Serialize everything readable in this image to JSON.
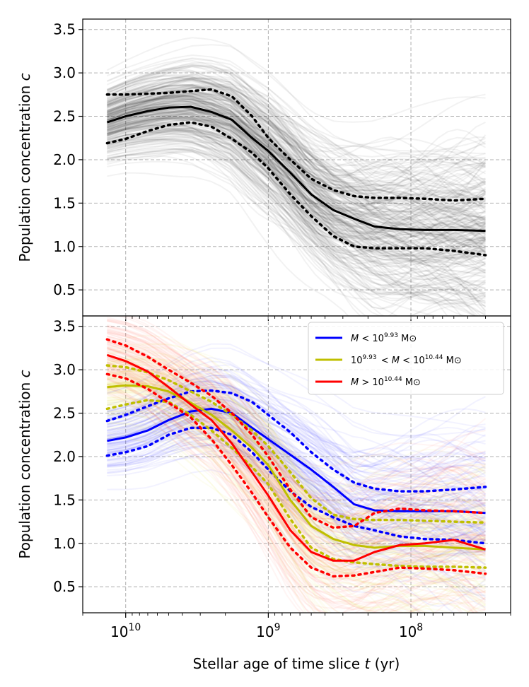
{
  "chart_data": [
    {
      "type": "line",
      "panel": "top",
      "ylabel_prefix": "Population concentration ",
      "ylabel_var": "c",
      "x_scale": "log",
      "x_reversed": true,
      "xlim": [
        20000000000,
        20000000
      ],
      "ylim": [
        0.2,
        3.62
      ],
      "grid": true,
      "yticks": [
        0.5,
        1.0,
        1.5,
        2.0,
        2.5,
        3.0,
        3.5
      ],
      "ytick_labels": [
        "0.5",
        "1.0",
        "1.5",
        "2.0",
        "2.5",
        "3.0",
        "3.5"
      ],
      "series": [
        {
          "name": "median",
          "color": "#000000",
          "style": "solid",
          "x": [
            13500000000,
            10000000000,
            7000000000,
            5000000000,
            3500000000,
            2500000000,
            1800000000,
            1300000000,
            1000000000,
            700000000,
            500000000,
            350000000,
            250000000,
            180000000,
            120000000,
            80000000,
            50000000,
            30000000
          ],
          "y": [
            2.43,
            2.5,
            2.56,
            2.6,
            2.61,
            2.55,
            2.46,
            2.25,
            2.1,
            1.85,
            1.6,
            1.42,
            1.32,
            1.23,
            1.2,
            1.19,
            1.19,
            1.18
          ]
        },
        {
          "name": "upper",
          "color": "#000000",
          "style": "dotted",
          "x": [
            13500000000,
            10000000000,
            7000000000,
            5000000000,
            3500000000,
            2500000000,
            1800000000,
            1300000000,
            1000000000,
            700000000,
            500000000,
            350000000,
            250000000,
            180000000,
            120000000,
            80000000,
            50000000,
            30000000
          ],
          "y": [
            2.75,
            2.75,
            2.76,
            2.77,
            2.79,
            2.81,
            2.73,
            2.5,
            2.25,
            2.0,
            1.78,
            1.65,
            1.58,
            1.56,
            1.56,
            1.55,
            1.53,
            1.55
          ]
        },
        {
          "name": "lower",
          "color": "#000000",
          "style": "dotted",
          "x": [
            13500000000,
            10000000000,
            7000000000,
            5000000000,
            3500000000,
            2500000000,
            1800000000,
            1300000000,
            1000000000,
            700000000,
            500000000,
            350000000,
            250000000,
            180000000,
            120000000,
            80000000,
            50000000,
            30000000
          ],
          "y": [
            2.19,
            2.24,
            2.33,
            2.4,
            2.43,
            2.38,
            2.24,
            2.08,
            1.9,
            1.6,
            1.35,
            1.12,
            1.0,
            0.98,
            0.98,
            0.98,
            0.95,
            0.9
          ]
        }
      ]
    },
    {
      "type": "line",
      "panel": "bottom",
      "ylabel_prefix": "Population concentration ",
      "ylabel_var": "c",
      "xlabel_prefix": "Stellar age of time slice ",
      "xlabel_var": "t",
      "xlabel_suffix": " (yr)",
      "x_scale": "log",
      "x_reversed": true,
      "xlim": [
        20000000000,
        20000000
      ],
      "ylim": [
        0.2,
        3.62
      ],
      "grid": true,
      "legend_location": "top-right",
      "yticks": [
        0.5,
        1.0,
        1.5,
        2.0,
        2.5,
        3.0,
        3.5
      ],
      "ytick_labels": [
        "0.5",
        "1.0",
        "1.5",
        "2.0",
        "2.5",
        "3.0",
        "3.5"
      ],
      "xticks": [
        10000000000,
        1000000000,
        100000000
      ],
      "xtick_base": "10",
      "xtick_exponents": [
        "10",
        "9",
        "8"
      ],
      "legend": [
        {
          "color": "#0000ff",
          "pre": "",
          "var": "M",
          "op": " < ",
          "base": "10",
          "exp": "9.93",
          "post": "",
          "unit": " M⊙"
        },
        {
          "color": "#bfbf00",
          "pre": "10",
          "pre_exp": "9.93",
          "var": "M",
          "op": " < ",
          "base": "10",
          "exp": "10.44",
          "post": "",
          "unit": " M⊙"
        },
        {
          "color": "#ff0000",
          "pre": "",
          "var": "M",
          "op": " > ",
          "base": "10",
          "exp": "10.44",
          "post": "",
          "unit": " M⊙"
        }
      ],
      "series": [
        {
          "name": "low-mass median",
          "color": "#0000ff",
          "style": "solid",
          "x": [
            13500000000,
            10000000000,
            7000000000,
            5000000000,
            3500000000,
            2500000000,
            1800000000,
            1300000000,
            1000000000,
            700000000,
            500000000,
            350000000,
            250000000,
            180000000,
            120000000,
            80000000,
            50000000,
            30000000
          ],
          "y": [
            2.18,
            2.22,
            2.3,
            2.42,
            2.52,
            2.55,
            2.5,
            2.33,
            2.2,
            2.02,
            1.85,
            1.65,
            1.45,
            1.38,
            1.37,
            1.37,
            1.37,
            1.35
          ]
        },
        {
          "name": "low-mass upper",
          "color": "#0000ff",
          "style": "dotted",
          "x": [
            13500000000,
            10000000000,
            7000000000,
            5000000000,
            3500000000,
            2500000000,
            1800000000,
            1300000000,
            1000000000,
            700000000,
            500000000,
            350000000,
            250000000,
            180000000,
            120000000,
            80000000,
            50000000,
            30000000
          ],
          "y": [
            2.41,
            2.48,
            2.58,
            2.67,
            2.75,
            2.76,
            2.73,
            2.63,
            2.48,
            2.28,
            2.05,
            1.85,
            1.7,
            1.63,
            1.6,
            1.6,
            1.62,
            1.65
          ]
        },
        {
          "name": "low-mass lower",
          "color": "#0000ff",
          "style": "dotted",
          "x": [
            13500000000,
            10000000000,
            7000000000,
            5000000000,
            3500000000,
            2500000000,
            1800000000,
            1300000000,
            1000000000,
            700000000,
            500000000,
            350000000,
            250000000,
            180000000,
            120000000,
            80000000,
            50000000,
            30000000
          ],
          "y": [
            2.01,
            2.05,
            2.12,
            2.25,
            2.33,
            2.33,
            2.25,
            2.05,
            1.85,
            1.6,
            1.42,
            1.3,
            1.2,
            1.15,
            1.08,
            1.05,
            1.04,
            1.0
          ]
        },
        {
          "name": "mid-mass median",
          "color": "#bfbf00",
          "style": "solid",
          "x": [
            13500000000,
            10000000000,
            7000000000,
            5000000000,
            3500000000,
            2500000000,
            1800000000,
            1300000000,
            1000000000,
            700000000,
            500000000,
            350000000,
            250000000,
            180000000,
            120000000,
            80000000,
            50000000,
            30000000
          ],
          "y": [
            2.8,
            2.82,
            2.81,
            2.75,
            2.62,
            2.48,
            2.3,
            2.1,
            1.9,
            1.5,
            1.2,
            1.05,
            0.98,
            0.95,
            0.97,
            0.97,
            0.95,
            0.93
          ]
        },
        {
          "name": "mid-mass upper",
          "color": "#bfbf00",
          "style": "dotted",
          "x": [
            13500000000,
            10000000000,
            7000000000,
            5000000000,
            3500000000,
            2500000000,
            1800000000,
            1300000000,
            1000000000,
            700000000,
            500000000,
            350000000,
            250000000,
            180000000,
            120000000,
            80000000,
            50000000,
            30000000
          ],
          "y": [
            3.05,
            3.03,
            2.97,
            2.88,
            2.75,
            2.63,
            2.48,
            2.3,
            2.12,
            1.82,
            1.52,
            1.33,
            1.28,
            1.27,
            1.27,
            1.26,
            1.25,
            1.24
          ]
        },
        {
          "name": "mid-mass lower",
          "color": "#bfbf00",
          "style": "dotted",
          "x": [
            13500000000,
            10000000000,
            7000000000,
            5000000000,
            3500000000,
            2500000000,
            1800000000,
            1300000000,
            1000000000,
            700000000,
            500000000,
            350000000,
            250000000,
            180000000,
            120000000,
            80000000,
            50000000,
            30000000
          ],
          "y": [
            2.55,
            2.6,
            2.65,
            2.63,
            2.48,
            2.3,
            2.1,
            1.88,
            1.68,
            1.28,
            0.95,
            0.82,
            0.78,
            0.76,
            0.74,
            0.73,
            0.73,
            0.72
          ]
        },
        {
          "name": "high-mass median",
          "color": "#ff0000",
          "style": "solid",
          "x": [
            13500000000,
            10000000000,
            7000000000,
            5000000000,
            3500000000,
            2500000000,
            1800000000,
            1300000000,
            1000000000,
            700000000,
            500000000,
            350000000,
            250000000,
            180000000,
            120000000,
            80000000,
            50000000,
            30000000
          ],
          "y": [
            3.17,
            3.1,
            2.98,
            2.8,
            2.6,
            2.42,
            2.15,
            1.82,
            1.55,
            1.15,
            0.9,
            0.8,
            0.8,
            0.9,
            0.98,
            1.0,
            1.04,
            0.93
          ]
        },
        {
          "name": "high-mass upper",
          "color": "#ff0000",
          "style": "dotted",
          "x": [
            13500000000,
            10000000000,
            7000000000,
            5000000000,
            3500000000,
            2500000000,
            1800000000,
            1300000000,
            1000000000,
            700000000,
            500000000,
            350000000,
            250000000,
            180000000,
            120000000,
            80000000,
            50000000,
            30000000
          ],
          "y": [
            3.35,
            3.28,
            3.15,
            3.0,
            2.85,
            2.7,
            2.5,
            2.25,
            2.0,
            1.62,
            1.3,
            1.18,
            1.2,
            1.35,
            1.4,
            1.38,
            1.37,
            1.35
          ]
        },
        {
          "name": "high-mass lower",
          "color": "#ff0000",
          "style": "dotted",
          "x": [
            13500000000,
            10000000000,
            7000000000,
            5000000000,
            3500000000,
            2500000000,
            1800000000,
            1300000000,
            1000000000,
            700000000,
            500000000,
            350000000,
            250000000,
            180000000,
            120000000,
            80000000,
            50000000,
            30000000
          ],
          "y": [
            2.95,
            2.9,
            2.78,
            2.62,
            2.45,
            2.2,
            1.9,
            1.58,
            1.3,
            0.95,
            0.72,
            0.62,
            0.63,
            0.67,
            0.72,
            0.71,
            0.69,
            0.65
          ]
        }
      ]
    }
  ]
}
